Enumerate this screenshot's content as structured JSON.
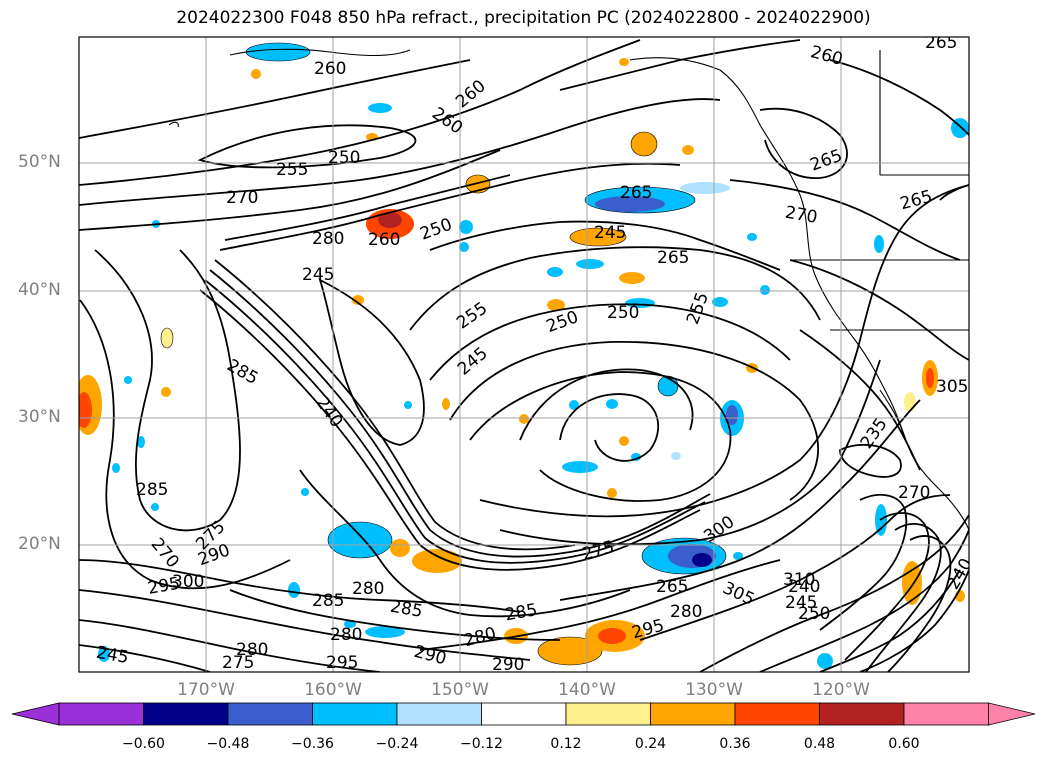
{
  "title": "2024022300 F048 850 hPa refract., precipitation PC (2024022800 - 2024022900)",
  "latitude_labels": [
    "50°N",
    "40°N",
    "30°N",
    "20°N"
  ],
  "longitude_labels": [
    "170°W",
    "160°W",
    "150°W",
    "140°W",
    "130°W",
    "120°W"
  ],
  "colorbar": {
    "ticks": [
      "−0.60",
      "−0.48",
      "−0.36",
      "−0.24",
      "−0.12",
      "0.12",
      "0.24",
      "0.36",
      "0.48",
      "0.60"
    ],
    "colors": [
      "#9b30d9",
      "#00008b",
      "#3a5fcd",
      "#00bfff",
      "#b0e2ff",
      "#ffffff",
      "#fff08c",
      "#ffa500",
      "#ff4500",
      "#b22222",
      "#ff82ab"
    ]
  },
  "contour_labels": [
    "260",
    "260",
    "260",
    "260",
    "265",
    "265",
    "265",
    "250",
    "255",
    "270",
    "265",
    "270",
    "245",
    "280",
    "260",
    "250",
    "265",
    "245",
    "255",
    "250",
    "250",
    "255",
    "245",
    "285",
    "240",
    "285",
    "270",
    "275",
    "290",
    "300",
    "295",
    "280",
    "285",
    "285",
    "280",
    "285",
    "280",
    "290",
    "295",
    "275",
    "290",
    "280",
    "275",
    "265",
    "280",
    "295",
    "300",
    "305",
    "310",
    "240",
    "245",
    "250",
    "235",
    "305",
    "270",
    "240",
    "245"
  ],
  "colors": {
    "contour": "#000000",
    "grid": "#a0a0a0",
    "coast": "#000000"
  }
}
